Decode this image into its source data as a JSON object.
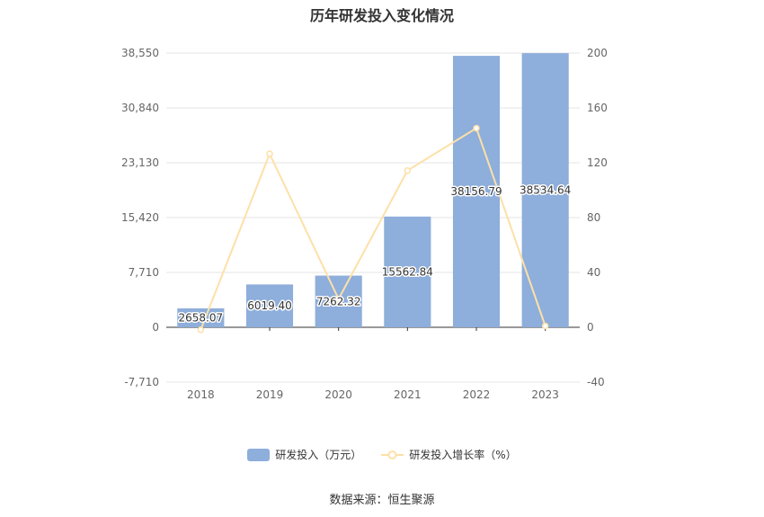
{
  "title": "历年研发投入变化情况",
  "source": "数据来源：恒生聚源",
  "colors": {
    "bar": "#8eaedb",
    "line": "#fde0a8",
    "grid": "#e6e6e6",
    "axis": "#333333",
    "text": "#666666"
  },
  "chart_data": {
    "type": "bar+line",
    "title": "历年研发投入变化情况",
    "categories": [
      "2018",
      "2019",
      "2020",
      "2021",
      "2022",
      "2023"
    ],
    "series": [
      {
        "name": "研发投入（万元）",
        "type": "bar",
        "axis": "left",
        "values": [
          2658.07,
          6019.4,
          7262.32,
          15562.84,
          38156.79,
          38534.64
        ],
        "labels": [
          "2658.07",
          "6019.40",
          "7262.32",
          "15562.84",
          "38156.79",
          "38534.64"
        ]
      },
      {
        "name": "研发投入增长率（%）",
        "type": "line",
        "axis": "right",
        "values": [
          -1.8,
          126.5,
          20.6,
          114.3,
          145.2,
          0.99
        ]
      }
    ],
    "y_left": {
      "min": -7710,
      "max": 38550,
      "ticks": [
        -7710,
        0,
        7710,
        15420,
        23130,
        30840,
        38550
      ],
      "tick_labels": [
        "-7,710",
        "0",
        "7,710",
        "15,420",
        "23,130",
        "30,840",
        "38,550"
      ]
    },
    "y_right": {
      "min": -40,
      "max": 200,
      "ticks": [
        -40,
        0,
        40,
        80,
        120,
        160,
        200
      ],
      "tick_labels": [
        "-40",
        "0",
        "40",
        "80",
        "120",
        "160",
        "200"
      ]
    },
    "grid": true,
    "legend_position": "bottom"
  }
}
